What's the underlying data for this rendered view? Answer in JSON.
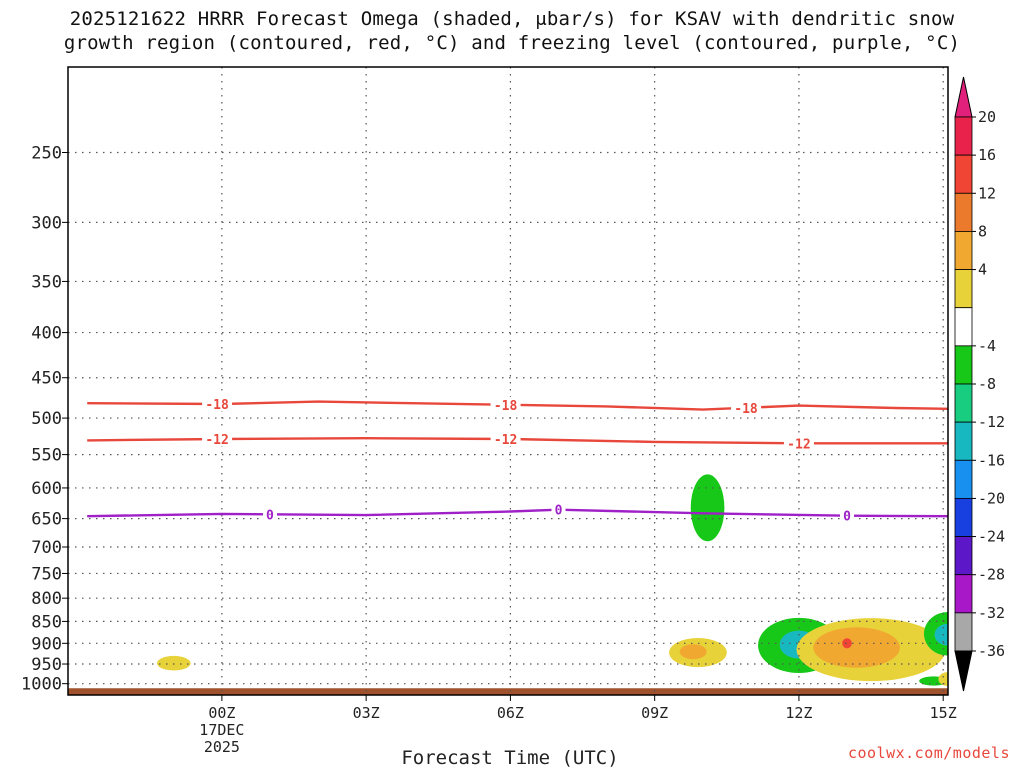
{
  "chart_data": {
    "type": "heatmap",
    "title_line1": "2025121622 HRRR Forecast Omega (shaded, μbar/s) for KSAV with dendritic snow",
    "title_line2": "growth region (contoured, red, °C) and freezing level (contoured, purple, °C)",
    "xlabel": "Forecast Time (UTC)",
    "ylabel": "",
    "x_range_hours": [
      -3.2,
      15.1
    ],
    "y_range_hPa": [
      1030,
      200
    ],
    "y_ticks": [
      250,
      300,
      350,
      400,
      450,
      500,
      550,
      600,
      650,
      700,
      750,
      800,
      850,
      900,
      950,
      1000
    ],
    "x_ticks": [
      {
        "hour": 0,
        "label": "00Z",
        "sub1": "17DEC",
        "sub2": "2025"
      },
      {
        "hour": 3,
        "label": "03Z",
        "sub1": "",
        "sub2": ""
      },
      {
        "hour": 6,
        "label": "06Z",
        "sub1": "",
        "sub2": ""
      },
      {
        "hour": 9,
        "label": "09Z",
        "sub1": "",
        "sub2": ""
      },
      {
        "hour": 12,
        "label": "12Z",
        "sub1": "",
        "sub2": ""
      },
      {
        "hour": 15,
        "label": "15Z",
        "sub1": "",
        "sub2": ""
      }
    ],
    "grid": true,
    "contours": [
      {
        "name": "dendritic -18C",
        "label": "-18",
        "color": "#e8473b",
        "hours": [
          -2.8,
          0,
          2,
          6,
          8,
          10,
          12,
          14,
          15.1
        ],
        "pressure_hPa": [
          481,
          482,
          479,
          483,
          485,
          489,
          484,
          487,
          488
        ],
        "label_hours": [
          -0.1,
          5.9,
          10.9
        ]
      },
      {
        "name": "dendritic -12C",
        "label": "-12",
        "color": "#e8473b",
        "hours": [
          -2.8,
          0,
          3,
          6,
          9,
          12,
          15.1
        ],
        "pressure_hPa": [
          530,
          528,
          527,
          528,
          532,
          534,
          534
        ],
        "label_hours": [
          -0.1,
          5.9,
          12.0
        ]
      },
      {
        "name": "freezing level 0C",
        "label": "0",
        "color": "#a020c8",
        "hours": [
          -2.8,
          0,
          3,
          6,
          7,
          10,
          13,
          15.1
        ],
        "pressure_hPa": [
          646,
          642,
          644,
          638,
          635,
          641,
          645,
          646
        ],
        "label_hours": [
          1.0,
          7.0,
          13.0
        ]
      }
    ],
    "omega_features": [
      {
        "name": "Green ascent cell near 10Z",
        "hour": 10.1,
        "pressure_hPa": 632,
        "rx_hours": 0.35,
        "ry_hPa": 55,
        "value": -7
      },
      {
        "name": "Yellow blob near 23Z",
        "hour": -1.0,
        "pressure_hPa": 948,
        "rx_hours": 0.35,
        "ry_hPa": 18,
        "value": 6
      },
      {
        "name": "Yellow blob near 10Z",
        "hour": 9.9,
        "pressure_hPa": 922,
        "rx_hours": 0.6,
        "ry_hPa": 35,
        "value": 7
      },
      {
        "name": "Orange core near 10Z",
        "hour": 9.8,
        "pressure_hPa": 920,
        "rx_hours": 0.28,
        "ry_hPa": 18,
        "value": 11
      },
      {
        "name": "Green cell near 12Z",
        "hour": 12.0,
        "pressure_hPa": 905,
        "rx_hours": 0.85,
        "ry_hPa": 65,
        "value": -7
      },
      {
        "name": "Teal core near 12Z",
        "hour": 12.0,
        "pressure_hPa": 903,
        "rx_hours": 0.4,
        "ry_hPa": 33,
        "value": -13
      },
      {
        "name": "Cyan center near 12Z",
        "hour": 12.0,
        "pressure_hPa": 902,
        "rx_hours": 0.15,
        "ry_hPa": 14,
        "value": -14
      },
      {
        "name": "Yellow region near 13Z",
        "hour": 13.5,
        "pressure_hPa": 915,
        "rx_hours": 1.55,
        "ry_hPa": 75,
        "value": 6
      },
      {
        "name": "Orange region near 13Z",
        "hour": 13.2,
        "pressure_hPa": 910,
        "rx_hours": 0.9,
        "ry_hPa": 48,
        "value": 10
      },
      {
        "name": "Red core near 13Z",
        "hour": 13.0,
        "pressure_hPa": 900,
        "rx_hours": 0.1,
        "ry_hPa": 12,
        "value": 17
      },
      {
        "name": "Green cell near 15Z edge",
        "hour": 15.1,
        "pressure_hPa": 878,
        "rx_hours": 0.5,
        "ry_hPa": 50,
        "value": -7
      },
      {
        "name": "Teal core near 15Z edge",
        "hour": 15.1,
        "pressure_hPa": 880,
        "rx_hours": 0.28,
        "ry_hPa": 25,
        "value": -13
      },
      {
        "name": "Small green near 15Z",
        "hour": 14.8,
        "pressure_hPa": 993,
        "rx_hours": 0.3,
        "ry_hPa": 12,
        "value": -7
      },
      {
        "name": "Small yellow near 15Z",
        "hour": 15.1,
        "pressure_hPa": 988,
        "rx_hours": 0.2,
        "ry_hPa": 18,
        "value": 6
      }
    ],
    "colorbar": {
      "levels": [
        {
          "label": "20",
          "color": "#e8224b"
        },
        {
          "label": "16",
          "color": "#f04434"
        },
        {
          "label": "12",
          "color": "#ec7a2c"
        },
        {
          "label": "8",
          "color": "#f0a830"
        },
        {
          "label": "4",
          "color": "#e8d23a"
        },
        {
          "label": "",
          "color": "#ffffff"
        },
        {
          "label": "-4",
          "color": "#18c818"
        },
        {
          "label": "-8",
          "color": "#18cc80"
        },
        {
          "label": "-12",
          "color": "#18b8c0"
        },
        {
          "label": "-16",
          "color": "#1890f0"
        },
        {
          "label": "-20",
          "color": "#1840e0"
        },
        {
          "label": "-24",
          "color": "#5c18c8"
        },
        {
          "label": "-28",
          "color": "#a818c8"
        },
        {
          "label": "-32",
          "color": "#a8a8a8"
        },
        {
          "label": "-36",
          "color": "#000000"
        }
      ],
      "top_arrow_color": "#e0207a",
      "bottom_arrow_color": "#000000"
    },
    "ground_color": "#a0522d"
  },
  "watermark": "coolwx.com/models"
}
